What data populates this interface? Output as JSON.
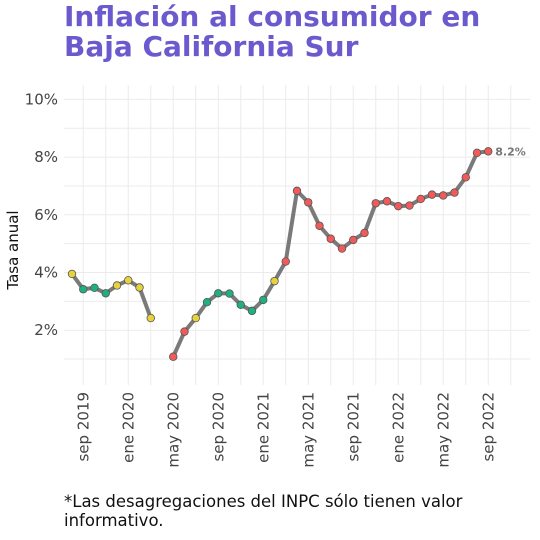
{
  "title_line1": "Inflación al consumidor en",
  "title_line2": "Baja California Sur",
  "footnote": "*Las desagregaciones del INPC sólo tienen valor informativo.",
  "colors": {
    "title": "#6a5acd",
    "line": "#7a7a7a",
    "high": "#f25a5a",
    "mid": "#e6d23a",
    "low": "#1fb080"
  },
  "chart_data": {
    "type": "line",
    "ylabel": "Tasa anual",
    "ylim": [
      0.1,
      10.5
    ],
    "yticks": [
      {
        "value": 2,
        "label": "2%"
      },
      {
        "value": 4,
        "label": "4%"
      },
      {
        "value": 6,
        "label": "6%"
      },
      {
        "value": 8,
        "label": "8%"
      },
      {
        "value": 10,
        "label": "10%"
      }
    ],
    "xticks": [
      {
        "index": 1,
        "label": "sep 2019"
      },
      {
        "index": 5,
        "label": "ene 2020"
      },
      {
        "index": 9,
        "label": "may 2020"
      },
      {
        "index": 13,
        "label": "sep 2020"
      },
      {
        "index": 17,
        "label": "ene 2021"
      },
      {
        "index": 21,
        "label": "may 2021"
      },
      {
        "index": 25,
        "label": "sep 2021"
      },
      {
        "index": 29,
        "label": "ene 2022"
      },
      {
        "index": 33,
        "label": "may 2022"
      },
      {
        "index": 37,
        "label": "sep 2022"
      }
    ],
    "segments": [
      [
        {
          "month": "ago 2019",
          "value": 3.95,
          "cat": "mid"
        },
        {
          "month": "sep 2019",
          "value": 3.42,
          "cat": "low"
        },
        {
          "month": "oct 2019",
          "value": 3.47,
          "cat": "low"
        },
        {
          "month": "nov 2019",
          "value": 3.28,
          "cat": "low"
        },
        {
          "month": "dic 2019",
          "value": 3.55,
          "cat": "mid"
        },
        {
          "month": "ene 2020",
          "value": 3.73,
          "cat": "mid"
        },
        {
          "month": "feb 2020",
          "value": 3.48,
          "cat": "mid"
        },
        {
          "month": "mar 2020",
          "value": 2.42,
          "cat": "mid"
        }
      ],
      [
        {
          "month": "may 2020",
          "value": 1.08,
          "cat": "high"
        },
        {
          "month": "jun 2020",
          "value": 1.95,
          "cat": "high"
        },
        {
          "month": "jul 2020",
          "value": 2.42,
          "cat": "mid"
        },
        {
          "month": "ago 2020",
          "value": 2.97,
          "cat": "low"
        },
        {
          "month": "sep 2020",
          "value": 3.28,
          "cat": "low"
        },
        {
          "month": "oct 2020",
          "value": 3.27,
          "cat": "low"
        },
        {
          "month": "nov 2020",
          "value": 2.88,
          "cat": "low"
        },
        {
          "month": "dic 2020",
          "value": 2.67,
          "cat": "low"
        },
        {
          "month": "ene 2021",
          "value": 3.05,
          "cat": "low"
        },
        {
          "month": "feb 2021",
          "value": 3.7,
          "cat": "mid"
        },
        {
          "month": "mar 2021",
          "value": 4.38,
          "cat": "high"
        },
        {
          "month": "abr 2021",
          "value": 6.83,
          "cat": "high"
        },
        {
          "month": "may 2021",
          "value": 6.43,
          "cat": "high"
        },
        {
          "month": "jun 2021",
          "value": 5.62,
          "cat": "high"
        },
        {
          "month": "jul 2021",
          "value": 5.17,
          "cat": "high"
        },
        {
          "month": "ago 2021",
          "value": 4.83,
          "cat": "high"
        },
        {
          "month": "sep 2021",
          "value": 5.13,
          "cat": "high"
        },
        {
          "month": "oct 2021",
          "value": 5.37,
          "cat": "high"
        },
        {
          "month": "nov 2021",
          "value": 6.4,
          "cat": "high"
        },
        {
          "month": "dic 2021",
          "value": 6.47,
          "cat": "high"
        },
        {
          "month": "ene 2022",
          "value": 6.3,
          "cat": "high"
        },
        {
          "month": "feb 2022",
          "value": 6.32,
          "cat": "high"
        },
        {
          "month": "mar 2022",
          "value": 6.55,
          "cat": "high"
        },
        {
          "month": "abr 2022",
          "value": 6.7,
          "cat": "high"
        },
        {
          "month": "may 2022",
          "value": 6.67,
          "cat": "high"
        },
        {
          "month": "jun 2022",
          "value": 6.77,
          "cat": "high"
        },
        {
          "month": "jul 2022",
          "value": 7.3,
          "cat": "high"
        },
        {
          "month": "ago 2022",
          "value": 8.15,
          "cat": "high"
        },
        {
          "month": "sep 2022",
          "value": 8.2,
          "cat": "high"
        }
      ]
    ],
    "data_label": {
      "month": "sep 2022",
      "text": "8.2%"
    }
  }
}
